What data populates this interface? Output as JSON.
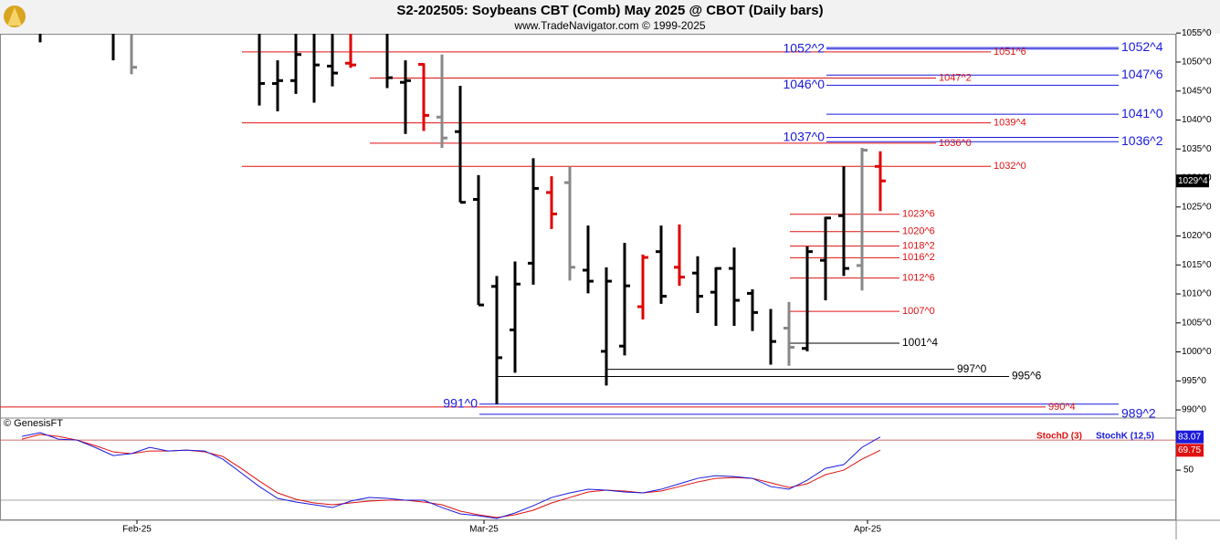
{
  "chart_data": [
    {
      "type": "ohlc",
      "title": "S2-202505:  Soybeans CBT (Comb) May 2025 @ CBOT  (Daily bars)",
      "subtitle": "www.TradeNavigator.com © 1999-2025",
      "annotation": "© GenesisFT",
      "categories": [
        null,
        null,
        null,
        null,
        null,
        null,
        "Feb-25",
        null,
        null,
        null,
        null,
        null,
        null,
        null,
        null,
        null,
        null,
        null,
        null,
        null,
        null,
        null,
        null,
        null,
        null,
        "Mar-25",
        null,
        null,
        null,
        null,
        null,
        null,
        null,
        null,
        null,
        null,
        null,
        null,
        null,
        null,
        null,
        null,
        null,
        null,
        null,
        null,
        "Apr-25",
        null
      ],
      "high": [
        null,
        1057,
        null,
        null,
        null,
        1057,
        1057,
        null,
        null,
        null,
        null,
        null,
        null,
        1057,
        1050.3,
        1057,
        1057,
        1057,
        1057,
        1057,
        1057,
        1050.3,
        1049.8,
        1051.3,
        1045.9,
        1030.5,
        1013.1,
        1015.6,
        1033.4,
        1030.3,
        1032,
        1021.8,
        1014.6,
        1018.8,
        1016.8,
        1021.8,
        1022,
        1016.5,
        1014.6,
        1018,
        1010.8,
        1007.4,
        1008.6,
        1018.2,
        1023.3,
        1032,
        1035.2,
        1034.6
      ],
      "low": [
        null,
        1053.4,
        null,
        null,
        null,
        1050.3,
        1047.9,
        null,
        null,
        null,
        null,
        null,
        null,
        1042.5,
        1041.5,
        1044.5,
        1043,
        1045.8,
        1049,
        1055.2,
        1045.5,
        1037.6,
        1038.1,
        1035.2,
        1025.8,
        1008.1,
        991,
        996.4,
        1011.6,
        1021.2,
        1012.3,
        1010.1,
        994.2,
        999.4,
        1005.6,
        1008.3,
        1011.4,
        1006.7,
        1004.5,
        1004.5,
        1003.6,
        997.8,
        997.6,
        1000.1,
        1008.9,
        1013.1,
        1010.6,
        1024.3
      ],
      "open": [
        null,
        null,
        null,
        null,
        null,
        null,
        null,
        null,
        null,
        null,
        null,
        null,
        null,
        null,
        1046.3,
        1046.8,
        null,
        1049.3,
        1049.8,
        null,
        null,
        1046.5,
        1049.6,
        1040.5,
        1038,
        1026.3,
        1011.3,
        1003.8,
        1015.3,
        1027.5,
        1029.2,
        1014.1,
        1000.1,
        1001,
        1007.8,
        1017.3,
        1014.6,
        1013.6,
        1010.3,
        1014.4,
        1010.1,
        null,
        1004.1,
        1000.6,
        1015.8,
        1023.5,
        1014.9,
        1032
      ],
      "close": [
        null,
        null,
        null,
        null,
        null,
        null,
        1049.1,
        null,
        null,
        null,
        null,
        null,
        null,
        1046.3,
        1046.8,
        1051.3,
        1049.5,
        1048.1,
        1049.5,
        null,
        1047.3,
        1046.8,
        1040.8,
        1036.9,
        1025.8,
        1008.1,
        999,
        1011.7,
        1028.2,
        1023.8,
        1014.6,
        1012.2,
        1012.2,
        1011.4,
        1016.3,
        1009.6,
        1012.9,
        1009.6,
        1014.4,
        1008.9,
        1006.8,
        1001.8,
        1000.8,
        1017.3,
        1023.1,
        1014.4,
        1034.8,
        1029.5
      ],
      "bar_colors": [
        "#000",
        "#000",
        "#000",
        "#000",
        "#000",
        "#000",
        "#888",
        "#000",
        "#000",
        "#000",
        "#000",
        "#000",
        "#000",
        "#000",
        "#000",
        "#000",
        "#000",
        "#000",
        "#e00000",
        "#000",
        "#000",
        "#000",
        "#e00000",
        "#888",
        "#000",
        "#000",
        "#000",
        "#000",
        "#000",
        "#e00000",
        "#888",
        "#000",
        "#000",
        "#000",
        "#e00000",
        "#000",
        "#e00000",
        "#000",
        "#000",
        "#000",
        "#000",
        "#000",
        "#888",
        "#000",
        "#000",
        "#000",
        "#888",
        "#e00000"
      ],
      "ylim": [
        988.75,
        1055.35
      ],
      "yticks": [
        {
          "value": 1055,
          "label": "1055^0"
        },
        {
          "value": 1050,
          "label": "1050^0"
        },
        {
          "value": 1045,
          "label": "1045^0"
        },
        {
          "value": 1040,
          "label": "1040^0"
        },
        {
          "value": 1035,
          "label": "1035^0"
        },
        {
          "value": 1030,
          "label": "1030^0"
        },
        {
          "value": 1025,
          "label": "1025^0"
        },
        {
          "value": 1020,
          "label": "1020^0"
        },
        {
          "value": 1015,
          "label": "1015^0"
        },
        {
          "value": 1010,
          "label": "1010^0"
        },
        {
          "value": 1005,
          "label": "1005^0"
        },
        {
          "value": 1000,
          "label": "1000^0"
        },
        {
          "value": 995,
          "label": "995^0"
        },
        {
          "value": 990,
          "label": "990^0"
        }
      ],
      "last_price": {
        "value": 1029.5,
        "label": "1029^4"
      },
      "levels": [
        {
          "label": "1052^2",
          "value": 1052.25,
          "color": "#1a1adb"
        },
        {
          "label": "1052^4",
          "value": 1052.5,
          "color": "#1a1adb"
        },
        {
          "label": "1051^6",
          "value": 1051.75,
          "color": "#e01010"
        },
        {
          "label": "1047^6",
          "value": 1047.75,
          "color": "#1a1adb"
        },
        {
          "label": "1047^2",
          "value": 1047.25,
          "color": "#e01010"
        },
        {
          "label": "1046^0",
          "value": 1046,
          "color": "#1a1adb"
        },
        {
          "label": "1041^0",
          "value": 1041,
          "color": "#1a1adb"
        },
        {
          "label": "1039^4",
          "value": 1039.5,
          "color": "#e01010"
        },
        {
          "label": "1037^0",
          "value": 1037,
          "color": "#1a1adb"
        },
        {
          "label": "1036^2",
          "value": 1036.25,
          "color": "#1a1adb"
        },
        {
          "label": "1036^0",
          "value": 1036,
          "color": "#e01010"
        },
        {
          "label": "1032^0",
          "value": 1032,
          "color": "#e01010"
        },
        {
          "label": "1023^6",
          "value": 1023.75,
          "color": "#e01010"
        },
        {
          "label": "1020^6",
          "value": 1020.75,
          "color": "#e01010"
        },
        {
          "label": "1018^2",
          "value": 1018.25,
          "color": "#e01010"
        },
        {
          "label": "1016^2",
          "value": 1016.25,
          "color": "#e01010"
        },
        {
          "label": "1012^6",
          "value": 1012.75,
          "color": "#e01010"
        },
        {
          "label": "1007^0",
          "value": 1007,
          "color": "#e01010"
        },
        {
          "label": "1001^4",
          "value": 1001.5,
          "color": "#000000"
        },
        {
          "label": "997^0",
          "value": 997,
          "color": "#000000"
        },
        {
          "label": "995^6",
          "value": 995.75,
          "color": "#000000"
        },
        {
          "label": "991^0",
          "value": 991,
          "color": "#1a1adb"
        },
        {
          "label": "990^4",
          "value": 990.5,
          "color": "#e01010"
        },
        {
          "label": "989^2",
          "value": 989.25,
          "color": "#1a1adb"
        }
      ]
    },
    {
      "type": "line",
      "series": [
        {
          "name": "StochD (3)",
          "color": "#e01010",
          "values": [
            80.9,
            85.5,
            83.6,
            80,
            74.5,
            68.2,
            66.4,
            69.1,
            69.1,
            70,
            68.2,
            63.6,
            51.8,
            39.1,
            27.3,
            20.9,
            17.3,
            15.5,
            17.3,
            19.1,
            20,
            20,
            18.2,
            15.5,
            9.1,
            5.5,
            2.7,
            5.5,
            10,
            17.3,
            22.7,
            28.2,
            30,
            29.1,
            27.3,
            29.1,
            33.6,
            38.2,
            41.8,
            42.7,
            41.8,
            37.3,
            32.7,
            36.4,
            45.5,
            50,
            60.9,
            69.75
          ]
        },
        {
          "name": "StochK (12,5)",
          "color": "#1a1adb",
          "values": [
            83.6,
            87.3,
            80.9,
            80,
            72.7,
            64.5,
            66.4,
            72.7,
            69.1,
            70,
            69.1,
            60.9,
            47.3,
            33.6,
            21.8,
            18.2,
            15.5,
            12.7,
            19.1,
            22.7,
            21.8,
            20,
            20,
            12.7,
            6.4,
            4.5,
            1.8,
            7.3,
            14.5,
            22.7,
            27.3,
            30.9,
            30,
            28.2,
            27.3,
            30.9,
            36.4,
            41.8,
            44.5,
            43.6,
            41.8,
            33.6,
            30.9,
            40,
            51.8,
            55.5,
            72.7,
            83.07
          ]
        }
      ],
      "ylim": [
        0,
        91
      ],
      "yticks": [
        50
      ],
      "hlines": [
        {
          "value": 80,
          "color": "#c04040"
        },
        {
          "value": 20,
          "color": "#888888"
        }
      ]
    }
  ]
}
